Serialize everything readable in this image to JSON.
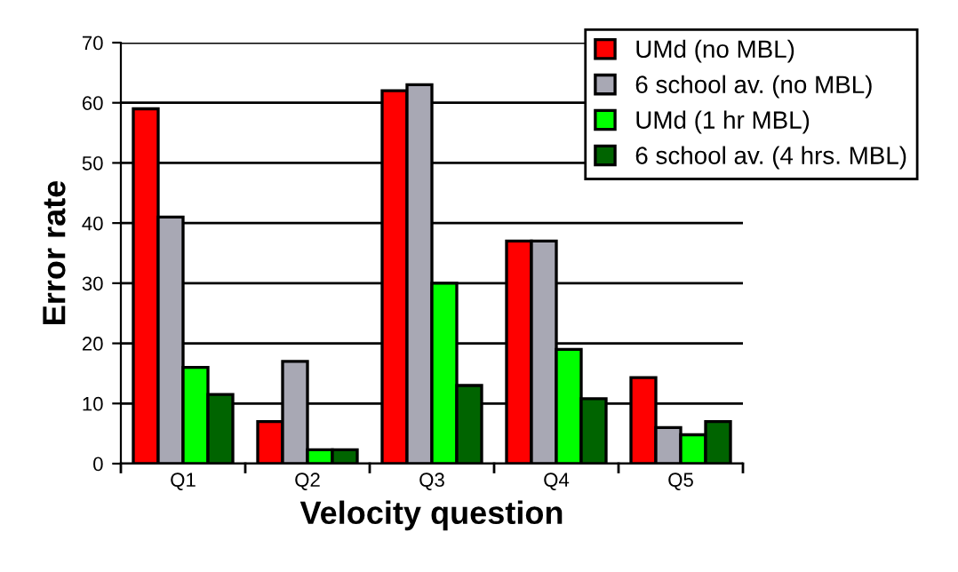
{
  "chart_data": {
    "type": "bar",
    "xlabel": "Velocity question",
    "ylabel": "Error rate",
    "categories": [
      "Q1",
      "Q2",
      "Q3",
      "Q4",
      "Q5"
    ],
    "series": [
      {
        "name": "UMd (no MBL)",
        "color": "#ff0000",
        "values": [
          59,
          7,
          62,
          37,
          14.3
        ]
      },
      {
        "name": "6 school av. (no MBL)",
        "color": "#a8a8b4",
        "values": [
          41,
          17,
          63,
          37,
          6
        ]
      },
      {
        "name": "UMd (1 hr MBL)",
        "color": "#00ff00",
        "values": [
          16,
          2.3,
          30,
          19,
          4.8
        ]
      },
      {
        "name": "6 school av. (4 hrs. MBL)",
        "color": "#006400",
        "values": [
          11.5,
          2.3,
          13,
          10.8,
          7
        ]
      }
    ],
    "ylim": [
      0,
      70
    ],
    "yticks": [
      0,
      10,
      20,
      30,
      40,
      50,
      60,
      70
    ],
    "grid": "y",
    "legend": "top right"
  }
}
